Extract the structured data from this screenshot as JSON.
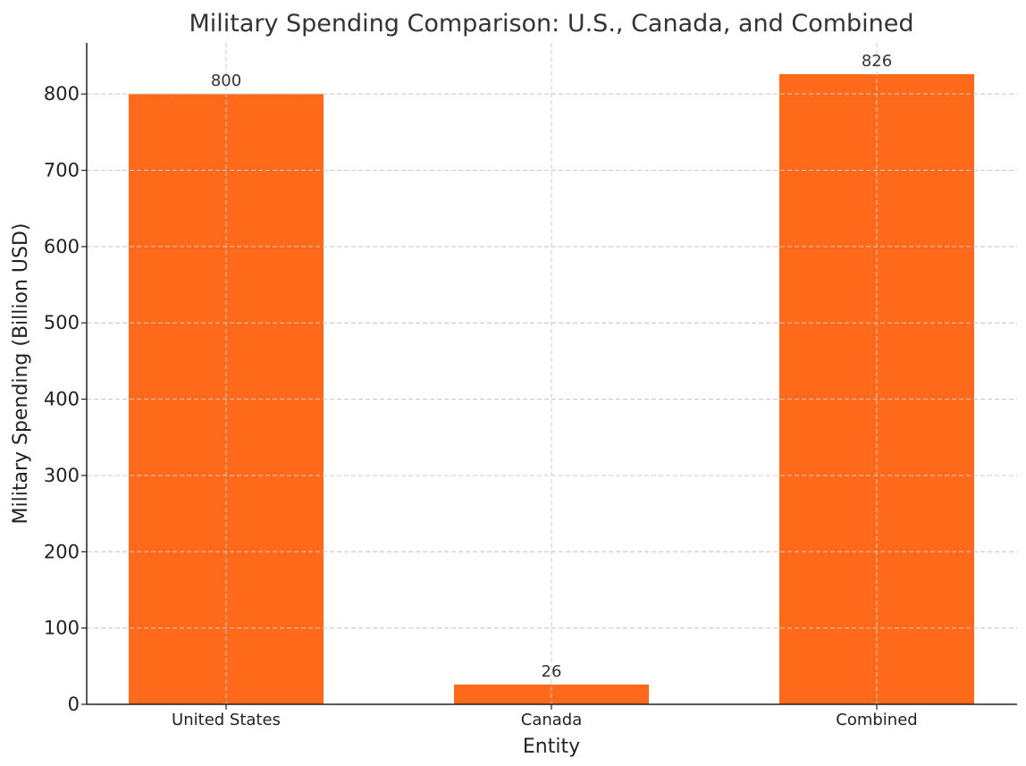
{
  "chart_data": {
    "type": "bar",
    "title": "Military Spending Comparison: U.S., Canada, and Combined",
    "xlabel": "Entity",
    "ylabel": "Military Spending (Billion USD)",
    "categories": [
      "United States",
      "Canada",
      "Combined"
    ],
    "values": [
      800,
      26,
      826
    ],
    "data_labels": [
      "800",
      "26",
      "826"
    ],
    "yticks": [
      0,
      100,
      200,
      300,
      400,
      500,
      600,
      700,
      800
    ],
    "ylim": [
      0,
      867
    ],
    "grid": true,
    "bar_color": "#ff6a1a"
  }
}
